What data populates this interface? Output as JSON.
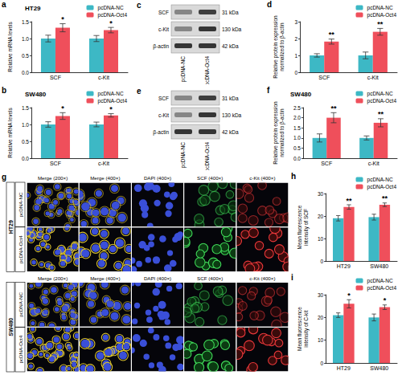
{
  "chart_data": [
    {
      "panel": "a",
      "type": "bar",
      "title": "HT29",
      "y_label": "Relative mRNA levels",
      "categories": [
        "SCF",
        "c-Kit"
      ],
      "series": [
        {
          "name": "pcDNA-NC",
          "color": "#3db8c5",
          "values": [
            1.0,
            1.0
          ],
          "errors": [
            0.1,
            0.09
          ]
        },
        {
          "name": "pcDNA-Oct4",
          "color": "#ef4f5b",
          "values": [
            1.32,
            1.25
          ],
          "errors": [
            0.12,
            0.08
          ],
          "annotations": [
            "*",
            "*"
          ]
        }
      ],
      "ylim": [
        0,
        1.5
      ],
      "yticks": [
        {
          "value": 0,
          "label": "0.0"
        },
        {
          "value": 0.5,
          "label": "0.5"
        },
        {
          "value": 1,
          "label": "1.0"
        },
        {
          "value": 1.5,
          "label": "1.5"
        }
      ],
      "grid": false,
      "legend": "upper right"
    },
    {
      "panel": "b",
      "type": "bar",
      "title": "SW480",
      "y_label": "Relative mRNA levels",
      "categories": [
        "SCF",
        "c-Kit"
      ],
      "series": [
        {
          "name": "pcDNA-NC",
          "color": "#3db8c5",
          "values": [
            1.0,
            1.0
          ],
          "errors": [
            0.08,
            0.07
          ]
        },
        {
          "name": "pcDNA-Oct4",
          "color": "#ef4f5b",
          "values": [
            1.25,
            1.27
          ],
          "errors": [
            0.1,
            0.05
          ],
          "annotations": [
            "*",
            "*"
          ]
        }
      ],
      "ylim": [
        0,
        1.5
      ],
      "yticks": [
        {
          "value": 0,
          "label": "0.0"
        },
        {
          "value": 0.5,
          "label": "0.5"
        },
        {
          "value": 1,
          "label": "1.0"
        },
        {
          "value": 1.5,
          "label": "1.5"
        }
      ],
      "grid": false,
      "legend": "upper right"
    },
    {
      "panel": "d",
      "type": "bar",
      "y_label": "Relative protein expression normalized to β-actin",
      "categories": [
        "SCF",
        "c-Kit"
      ],
      "series": [
        {
          "name": "pcDNA-NC",
          "color": "#3db8c5",
          "values": [
            1.0,
            1.0
          ],
          "errors": [
            0.1,
            0.2
          ]
        },
        {
          "name": "pcDNA-Oct4",
          "color": "#ef4f5b",
          "values": [
            1.82,
            2.4
          ],
          "errors": [
            0.15,
            0.2
          ],
          "annotations": [
            "**",
            "**"
          ]
        }
      ],
      "ylim": [
        0,
        3
      ],
      "yticks": [
        0,
        1,
        2,
        3
      ],
      "grid": false,
      "legend": "upper right"
    },
    {
      "panel": "f",
      "type": "bar",
      "title": "SW480",
      "y_label": "Relative protein expression normalized to β-actin",
      "categories": [
        "SCF",
        "c-Kit"
      ],
      "series": [
        {
          "name": "pcDNA-NC",
          "color": "#3db8c5",
          "values": [
            1.0,
            1.0
          ],
          "errors": [
            0.2,
            0.1
          ]
        },
        {
          "name": "pcDNA-Oct4",
          "color": "#ef4f5b",
          "values": [
            2.0,
            1.75
          ],
          "errors": [
            0.25,
            0.2
          ],
          "annotations": [
            "**",
            "**"
          ]
        }
      ],
      "ylim": [
        0,
        2.5
      ],
      "yticks": [
        {
          "value": 0,
          "label": "0.0"
        },
        {
          "value": 0.5,
          "label": "0.5"
        },
        {
          "value": 1,
          "label": "1.0"
        },
        {
          "value": 1.5,
          "label": "1.5"
        },
        {
          "value": 2,
          "label": "2.0"
        },
        {
          "value": 2.5,
          "label": "2.5"
        }
      ],
      "grid": false,
      "legend": "upper right"
    },
    {
      "panel": "h",
      "type": "bar",
      "y_label": "Mean fluorescence intensity of SCF",
      "categories": [
        "HT29",
        "SW480"
      ],
      "series": [
        {
          "name": "pcDNA-NC",
          "color": "#3db8c5",
          "values": [
            19,
            19.5
          ],
          "errors": [
            1.2,
            1.3
          ]
        },
        {
          "name": "pcDNA-Oct4",
          "color": "#ef4f5b",
          "values": [
            24,
            25
          ],
          "errors": [
            1,
            0.8
          ],
          "annotations": [
            "**",
            "**"
          ]
        }
      ],
      "ylim": [
        0,
        30
      ],
      "yticks": [
        0,
        10,
        20,
        30
      ],
      "grid": false,
      "legend": "upper right"
    },
    {
      "panel": "i",
      "type": "bar",
      "y_label": "Mean fluorescence intensity of C-kit",
      "categories": [
        "HT29",
        "SW480"
      ],
      "series": [
        {
          "name": "pcDNA-NC",
          "color": "#3db8c5",
          "values": [
            21,
            20
          ],
          "errors": [
            1,
            1.5
          ]
        },
        {
          "name": "pcDNA-Oct4",
          "color": "#ef4f5b",
          "values": [
            26,
            24.5
          ],
          "errors": [
            1.8,
            1
          ],
          "annotations": [
            "*",
            "*"
          ]
        }
      ],
      "ylim": [
        0,
        30
      ],
      "yticks": [
        0,
        10,
        20,
        30
      ],
      "grid": false,
      "legend": "upper right"
    }
  ],
  "blots": [
    {
      "panel": "c",
      "bands": [
        {
          "label": "SCF",
          "size": "31 kDa"
        },
        {
          "label": "c-Kit",
          "size": "130 kDa"
        },
        {
          "label": "β-actin",
          "size": "42 kDa"
        }
      ],
      "lanes": [
        "pcDNA-NC",
        "pcDNA-Oct4"
      ]
    },
    {
      "panel": "e",
      "bands": [
        {
          "label": "SCF",
          "size": "31 kDa"
        },
        {
          "label": "c-Kit",
          "size": "130 kDa"
        },
        {
          "label": "β-actin",
          "size": "42 kDa"
        }
      ],
      "lanes": [
        "pcDNA-NC",
        "pcDNA-Oct4"
      ]
    }
  ],
  "micrographs": {
    "panel": "g",
    "columns": [
      "Merge (200×)",
      "Merge (400×)",
      "DAPI (400×)",
      "SCF (400×)",
      "c-Kit (400×)"
    ],
    "cell_lines": [
      {
        "name": "HT29",
        "groups": [
          "pcDNA-NC",
          "pcDNA-Oct4"
        ]
      },
      {
        "name": "SW480",
        "groups": [
          "pcDNA-NC",
          "pcDNA-Oct4"
        ]
      }
    ]
  }
}
